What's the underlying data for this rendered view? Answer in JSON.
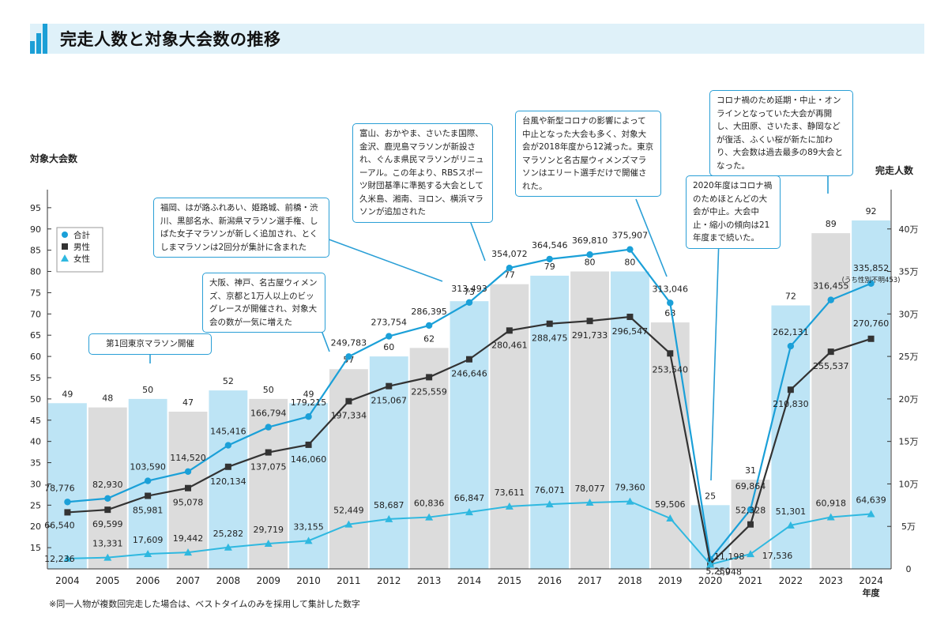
{
  "title": "完走人数と対象大会数の推移",
  "footnote": "※同一人物が複数回完走した場合は、ベストタイムのみを採用して集計した数字",
  "axis_labels": {
    "left": "対象大会数",
    "right": "完走人数",
    "x_unit": "年度"
  },
  "legend": [
    "合計",
    "男性",
    "女性"
  ],
  "annotations": [
    {
      "key": "tokyo",
      "text": "第1回東京マラソン開催"
    },
    {
      "key": "y2011",
      "text": "福岡、はが路ふれあい、姫路城、前橋・渋川、黒部名水、新潟県マラソン選手権、しばた女子マラソンが新しく追加され、とくしまマラソンは2回分が集計に含まれた"
    },
    {
      "key": "y2010",
      "text": "大阪、神戸、名古屋ウィメンズ、京都と1万人以上のビッグレースが開催され、対象大会の数が一気に増えた"
    },
    {
      "key": "y2014",
      "text": "富山、おかやま、さいたま国際、金沢、鹿児島マラソンが新設され、ぐんま県民マラソンがリニューアル。この年より、RBSスポーツ財団基準に準拠する大会として久米島、湘南、ヨロン、横浜マラソンが追加された"
    },
    {
      "key": "y2019",
      "text": "台風や新型コロナの影響によって中止となった大会も多く、対象大会が2018年度から12減った。東京マラソンと名古屋ウィメンズマラソンはエリート選手だけで開催された。"
    },
    {
      "key": "y2020",
      "text": "2020年度はコロナ禍のためほとんどの大会が中止。大会中止・縮小の傾向は21年度まで続いた。"
    },
    {
      "key": "y2023",
      "text": "コロナ禍のため延期・中止・オンラインとなっていた大会が再開し、大田原、さいたま、静岡などが復活、ふくい桜が新たに加わり、大会数は過去最多の89大会となった。"
    }
  ],
  "extra_labels": {
    "note_2024": "(うち性別不明453)"
  },
  "colors": {
    "blue_bar": "#bde4f5",
    "gray_bar": "#dcdcdc",
    "total": "#1ba0d8",
    "male": "#333333",
    "female": "#2fb8e0",
    "accent": "#2a9fd6"
  },
  "chart_data": {
    "type": "bar+line",
    "title": "完走人数と対象大会数の推移",
    "xlabel": "年度",
    "categories": [
      "2004",
      "2005",
      "2006",
      "2007",
      "2008",
      "2009",
      "2010",
      "2011",
      "2012",
      "2013",
      "2014",
      "2015",
      "2016",
      "2017",
      "2018",
      "2019",
      "2020",
      "2021",
      "2022",
      "2023",
      "2024"
    ],
    "bars": {
      "name": "対象大会数",
      "axis": "left",
      "values": [
        49,
        48,
        50,
        47,
        52,
        50,
        49,
        57,
        60,
        62,
        73,
        77,
        79,
        80,
        80,
        68,
        25,
        31,
        72,
        89,
        92
      ],
      "highlight": [
        true,
        false,
        true,
        false,
        true,
        false,
        true,
        false,
        true,
        false,
        true,
        false,
        true,
        false,
        true,
        false,
        true,
        false,
        true,
        false,
        true
      ]
    },
    "left_axis": {
      "label": "対象大会数",
      "ticks": [
        15,
        20,
        25,
        30,
        35,
        40,
        45,
        50,
        55,
        60,
        65,
        70,
        75,
        80,
        85,
        90,
        95
      ],
      "ylim": [
        10,
        96
      ]
    },
    "right_axis": {
      "label": "完走人数",
      "ticks": [
        0,
        50000,
        100000,
        150000,
        200000,
        250000,
        300000,
        350000,
        400000
      ],
      "tick_labels": [
        "0",
        "5万",
        "10万",
        "15万",
        "20万",
        "25万",
        "30万",
        "35万",
        "40万"
      ],
      "ylim": [
        0,
        450000
      ]
    },
    "series": [
      {
        "name": "合計",
        "marker": "circle",
        "axis": "right",
        "values": [
          78776,
          82930,
          103590,
          114520,
          145416,
          166794,
          179215,
          249783,
          273754,
          286395,
          313493,
          354072,
          364546,
          369810,
          375907,
          313046,
          11198,
          69864,
          262131,
          316455,
          335852
        ],
        "labels": [
          "78,776",
          "82,930",
          "103,590",
          "114,520",
          "145,416",
          "166,794",
          "179,215",
          "249,783",
          "273,754",
          "286,395",
          "313,493",
          "354,072",
          "364,546",
          "369,810",
          "375,907",
          "313,046",
          "11,198",
          "69,864",
          "262,131",
          "316,455",
          "335,852"
        ]
      },
      {
        "name": "男性",
        "marker": "square",
        "axis": "right",
        "values": [
          66540,
          69599,
          85981,
          95078,
          120134,
          137075,
          146060,
          197334,
          215067,
          225559,
          246646,
          280461,
          288475,
          291733,
          296547,
          253540,
          5948,
          52328,
          210830,
          255537,
          270760
        ],
        "labels": [
          "66,540",
          "69,599",
          "85,981",
          "95,078",
          "120,134",
          "137,075",
          "146,060",
          "197,334",
          "215,067",
          "225,559",
          "246,646",
          "280,461",
          "288,475",
          "291,733",
          "296,547",
          "253,540",
          "5,948",
          "52,328",
          "210,830",
          "255,537",
          "270,760"
        ]
      },
      {
        "name": "女性",
        "marker": "triangle",
        "axis": "right",
        "values": [
          12236,
          13331,
          17609,
          19442,
          25282,
          29719,
          33155,
          52449,
          58687,
          60836,
          66847,
          73611,
          76071,
          78077,
          79360,
          59506,
          5250,
          17536,
          51301,
          60918,
          64639
        ],
        "labels": [
          "12,236",
          "13,331",
          "17,609",
          "19,442",
          "25,282",
          "29,719",
          "33,155",
          "52,449",
          "58,687",
          "60,836",
          "66,847",
          "73,611",
          "76,071",
          "78,077",
          "79,360",
          "59,506",
          "5,250",
          "17,536",
          "51,301",
          "60,918",
          "64,639"
        ]
      }
    ],
    "legend_position": "top-left",
    "grid": false
  }
}
